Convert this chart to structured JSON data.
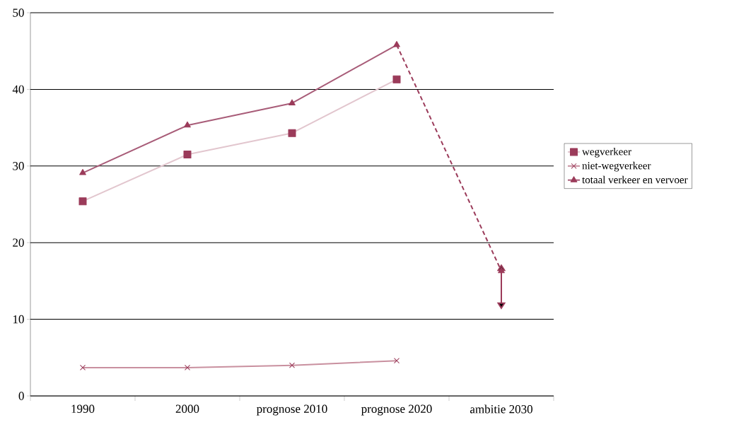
{
  "chart_data": {
    "type": "line",
    "categories": [
      "1990",
      "2000",
      "prognose 2010",
      "prognose 2020",
      "ambitie 2030"
    ],
    "color": "#9b3b5a",
    "series": [
      {
        "name": "wegverkeer",
        "color": "#e2c6ce",
        "marker": "square",
        "values": [
          25.4,
          31.5,
          34.3,
          41.3,
          null
        ]
      },
      {
        "name": "niet-wegverkeer",
        "color": "#c9909f",
        "marker": "cross",
        "values": [
          3.7,
          3.7,
          4.0,
          4.6,
          null
        ]
      },
      {
        "name": "totaal verkeer en vervoer",
        "color": "#a85c78",
        "marker": "triangle",
        "values": [
          29.1,
          35.3,
          38.2,
          45.8,
          null
        ]
      },
      {
        "color": "#9b3b5a",
        "marker": "triangle",
        "line_style": "dashed",
        "values": [
          null,
          null,
          null,
          45.8,
          16.3
        ],
        "errors": [
          null,
          null,
          null,
          null,
          [
            12.2,
            16.3
          ]
        ]
      }
    ],
    "ylim": [
      0,
      50
    ],
    "yticks": [
      0,
      10,
      20,
      30,
      40,
      50
    ],
    "grid": "y",
    "legend": "right"
  }
}
